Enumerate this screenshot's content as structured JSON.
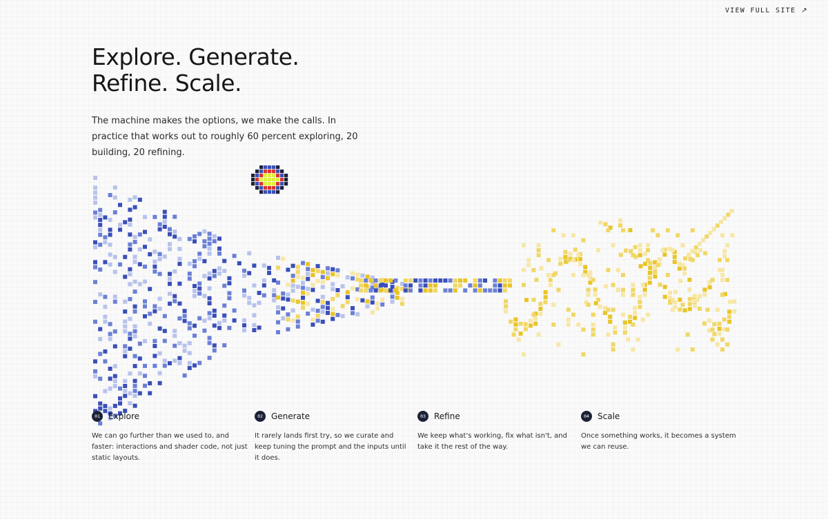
{
  "nav": {
    "view_full_site": "VIEW FULL SITE",
    "arrow_icon": "arrow-up-right-icon"
  },
  "hero": {
    "title_line1": "Explore. Generate.",
    "title_line2": "Refine. Scale.",
    "intro": "The machine makes the options, we make the calls. In practice that works out to roughly 60 percent exploring, 20 building, 20 refining."
  },
  "colors": {
    "blue_dark": "#3a4fb8",
    "blue_mid": "#6c80d6",
    "blue_light": "#b8c3ec",
    "yellow": "#e8c427",
    "yellow_mid": "#f1d766",
    "yellow_light": "#f7e7a6",
    "navy": "#1c2138",
    "red": "#d8342c",
    "lime": "#dff03a"
  },
  "steps": [
    {
      "number": "01",
      "title": "Explore",
      "description": "We can go further than we used to, and faster: interactions and shader code, not just static layouts."
    },
    {
      "number": "02",
      "title": "Generate",
      "description": "It rarely lands first try, so we curate and keep tuning the prompt and the inputs until it does."
    },
    {
      "number": "03",
      "title": "Refine",
      "description": "We keep what's working, fix what isn't, and take it the rest of the way."
    },
    {
      "number": "04",
      "title": "Scale",
      "description": "Once something works, it becomes a system we can reuse."
    }
  ]
}
